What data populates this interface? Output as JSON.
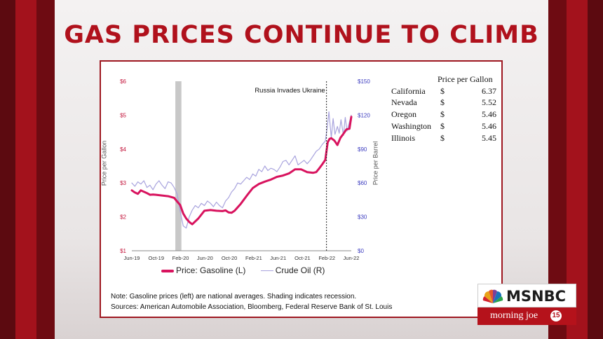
{
  "headline": "GAS PRICES CONTINUE TO CLIMB",
  "chart_data": {
    "type": "line",
    "categories": [
      "Jun-19",
      "Oct-19",
      "Feb-20",
      "Jun-20",
      "Oct-20",
      "Feb-21",
      "Jun-21",
      "Oct-21",
      "Feb-22",
      "Jun-22"
    ],
    "left_axis": {
      "title": "Price per Gallon",
      "ticks": [
        "$1",
        "$2",
        "$3",
        "$4",
        "$5",
        "$6"
      ],
      "range": [
        1,
        6
      ]
    },
    "right_axis": {
      "title": "Price per Barrel",
      "ticks": [
        "$0",
        "$30",
        "$60",
        "$90",
        "$120",
        "$150"
      ],
      "range": [
        0,
        150
      ]
    },
    "recession_band": {
      "start": 7.2,
      "end": 8.2
    },
    "annotation": {
      "text": "Russia Invades Ukraine",
      "position": 32.2
    },
    "series": [
      {
        "name": "Price: Gasoline (L)",
        "axis": "left",
        "color": "#d8135e",
        "x": [
          0,
          0.5,
          1,
          1.5,
          2,
          2.5,
          3,
          3.5,
          4,
          5,
          6,
          7,
          7.5,
          8,
          8.5,
          9,
          9.5,
          10,
          11,
          12,
          13,
          14,
          15,
          15.5,
          16,
          16.5,
          17,
          18,
          19,
          20,
          21,
          22,
          23,
          24,
          25,
          26,
          27,
          28,
          29,
          30,
          30.5,
          31,
          31.5,
          32,
          32.4,
          32.7,
          33,
          33.5,
          34,
          34.5,
          35,
          35.5,
          36,
          36.3
        ],
        "values": [
          2.78,
          2.72,
          2.68,
          2.78,
          2.74,
          2.7,
          2.65,
          2.66,
          2.65,
          2.63,
          2.61,
          2.56,
          2.45,
          2.35,
          2.1,
          1.95,
          1.85,
          1.78,
          1.95,
          2.18,
          2.2,
          2.18,
          2.17,
          2.19,
          2.13,
          2.12,
          2.18,
          2.38,
          2.62,
          2.85,
          2.97,
          3.04,
          3.1,
          3.18,
          3.22,
          3.28,
          3.4,
          3.4,
          3.32,
          3.3,
          3.32,
          3.43,
          3.55,
          3.68,
          4.2,
          4.3,
          4.32,
          4.25,
          4.12,
          4.33,
          4.45,
          4.58,
          4.6,
          4.95
        ]
      },
      {
        "name": "Crude Oil (R)",
        "axis": "right",
        "color": "#a9a4de",
        "x": [
          0,
          0.5,
          1,
          1.5,
          2,
          2.5,
          3,
          3.5,
          4,
          4.5,
          5,
          5.5,
          6,
          6.5,
          7,
          7.5,
          8,
          8.5,
          9,
          9.5,
          10,
          10.5,
          11,
          11.5,
          12,
          12.5,
          13,
          13.5,
          14,
          14.5,
          15,
          15.5,
          16,
          16.5,
          17,
          17.5,
          18,
          18.5,
          19,
          19.5,
          20,
          20.5,
          21,
          21.5,
          22,
          22.5,
          23,
          23.5,
          24,
          24.5,
          25,
          25.5,
          26,
          26.5,
          27,
          27.5,
          28,
          28.5,
          29,
          29.5,
          30,
          30.5,
          31,
          31.5,
          32,
          32.3,
          32.6,
          33,
          33.3,
          33.6,
          34,
          34.3,
          34.6,
          35,
          35.3,
          35.6,
          36,
          36.3
        ],
        "values": [
          60,
          57,
          61,
          59,
          62,
          56,
          58,
          54,
          59,
          62,
          58,
          55,
          61,
          60,
          56,
          50,
          35,
          22,
          20,
          30,
          36,
          40,
          38,
          42,
          40,
          44,
          42,
          39,
          43,
          40,
          38,
          44,
          47,
          52,
          55,
          60,
          59,
          62,
          65,
          63,
          68,
          66,
          72,
          70,
          75,
          71,
          73,
          72,
          70,
          74,
          79,
          80,
          76,
          80,
          84,
          76,
          78,
          80,
          77,
          80,
          84,
          88,
          90,
          94,
          97,
          108,
          123,
          100,
          117,
          103,
          110,
          104,
          116,
          102,
          118,
          106,
          114,
          120
        ]
      }
    ]
  },
  "legend": {
    "gasoline_label": "Price: Gasoline (L)",
    "crude_label": "Crude Oil (R)"
  },
  "price_table": {
    "header": "Price per Gallon",
    "rows": [
      {
        "state": "California",
        "currency": "$",
        "price": "6.37"
      },
      {
        "state": "Nevada",
        "currency": "$",
        "price": "5.52"
      },
      {
        "state": "Oregon",
        "currency": "$",
        "price": "5.46"
      },
      {
        "state": "Washington",
        "currency": "$",
        "price": "5.46"
      },
      {
        "state": "Illinois",
        "currency": "$",
        "price": "5.45"
      }
    ]
  },
  "notes": {
    "line1": "Note: Gasoline prices (left) are national averages. Shading indicates recession.",
    "line2": "Sources: American Automobile Association, Bloomberg, Federal Reserve Bank of St. Louis"
  },
  "logo": {
    "brand": "MSNBC",
    "show": "morning joe",
    "badge": "15"
  },
  "colors": {
    "headline": "#b0111c",
    "frame": "#9e1720",
    "gasoline": "#d8135e",
    "crude": "#a9a4de",
    "left_tick": "#c3163c",
    "right_tick": "#3b3bbf",
    "recession": "#c8c8c8"
  }
}
